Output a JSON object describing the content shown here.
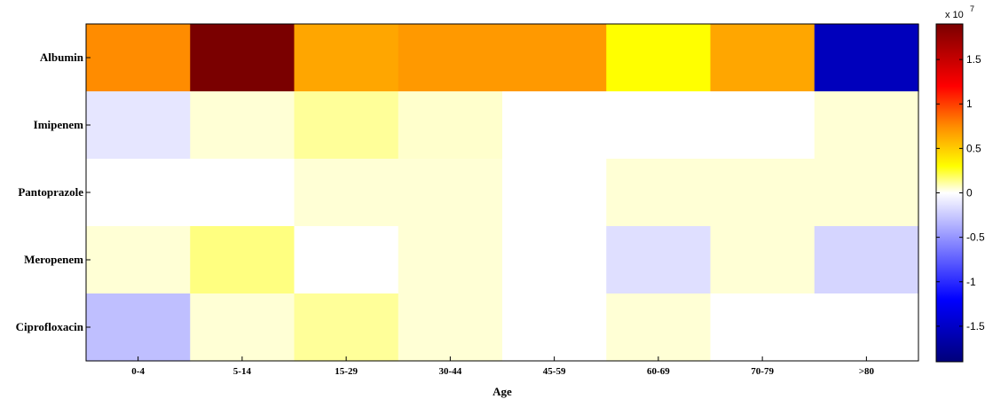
{
  "chart_data": {
    "type": "heatmap",
    "title": "",
    "xlabel": "Age",
    "ylabel": "",
    "x_categories": [
      "0-4",
      "5-14",
      "15-29",
      "30-44",
      "45-59",
      "60-69",
      "70-79",
      ">80"
    ],
    "y_categories": [
      "Albumin",
      "Imipenem",
      "Pantoprazole",
      "Meropenem",
      "Ciprofloxacin"
    ],
    "values": [
      [
        0.75,
        1.9,
        0.65,
        0.7,
        0.7,
        0.3,
        0.65,
        -1.55
      ],
      [
        -0.12,
        0.05,
        0.12,
        0.06,
        0.0,
        0.0,
        0.0,
        0.05
      ],
      [
        0.0,
        0.0,
        0.05,
        0.05,
        0.0,
        0.05,
        0.05,
        0.05
      ],
      [
        0.05,
        0.15,
        0.0,
        0.05,
        0.0,
        -0.15,
        0.05,
        -0.2
      ],
      [
        -0.3,
        0.05,
        0.12,
        0.05,
        0.0,
        0.05,
        0.0,
        0.0
      ]
    ],
    "value_scale": 10000000,
    "colorbar": {
      "range": [
        -1.9,
        1.9
      ],
      "ticks": [
        -1.5,
        -1,
        -0.5,
        0,
        0.5,
        1,
        1.5
      ],
      "tick_labels": [
        "-1.5",
        "-1",
        "-0.5",
        "0",
        "0.5",
        "1",
        "1.5"
      ],
      "exponent_base": "x 10",
      "exponent_power": "7",
      "colormap": [
        {
          "v": -1.9,
          "color": "#00007a"
        },
        {
          "v": -1.2,
          "color": "#0000ff"
        },
        {
          "v": 0.0,
          "color": "#ffffff"
        },
        {
          "v": 0.3,
          "color": "#ffff00"
        },
        {
          "v": 0.75,
          "color": "#ff8c00"
        },
        {
          "v": 1.2,
          "color": "#ff0000"
        },
        {
          "v": 1.9,
          "color": "#7a0000"
        }
      ]
    },
    "grid": false
  }
}
